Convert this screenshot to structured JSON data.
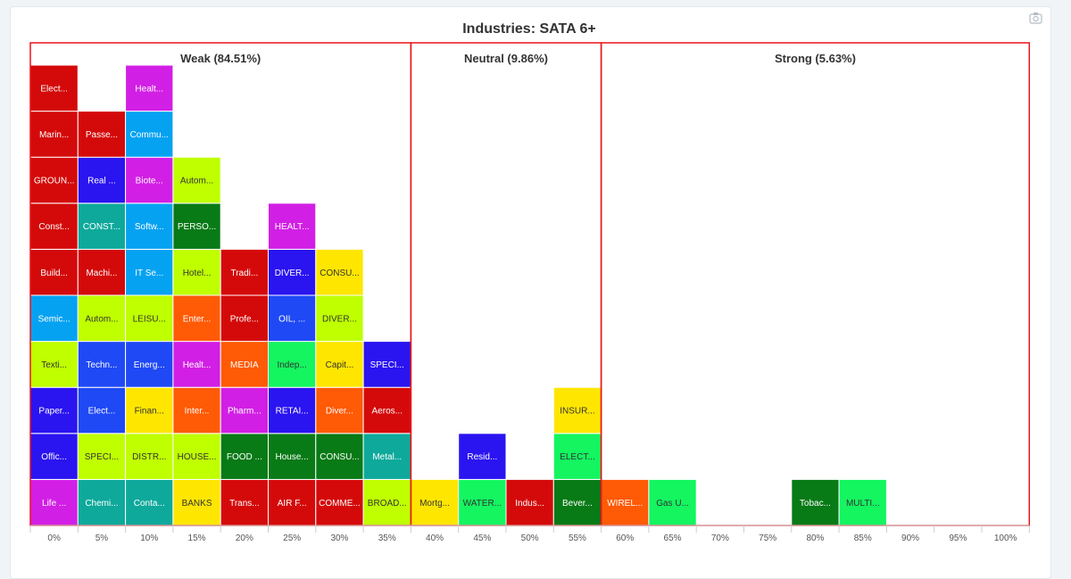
{
  "chart_data": {
    "type": "heatmap",
    "title": "Industries: SATA 6+",
    "x_ticks": [
      "0%",
      "5%",
      "10%",
      "15%",
      "20%",
      "25%",
      "30%",
      "35%",
      "40%",
      "45%",
      "50%",
      "55%",
      "60%",
      "65%",
      "70%",
      "75%",
      "80%",
      "85%",
      "90%",
      "95%",
      "100%"
    ],
    "zones": [
      {
        "label": "Weak (84.51%)",
        "start_col": 0,
        "end_col": 8
      },
      {
        "label": "Neutral (9.86%)",
        "start_col": 8,
        "end_col": 12
      },
      {
        "label": "Strong (5.63%)",
        "start_col": 12,
        "end_col": 21
      }
    ],
    "colors": {
      "red": "#d40a0a",
      "darkred": "#c70606",
      "blue": "#2a14f0",
      "magenta": "#d21fe5",
      "lightblue": "#05a2f2",
      "teal": "#0ea99b",
      "lime": "#bfff00",
      "yellow": "#ffe600",
      "orange": "#ff5a05",
      "darkgreen": "#087a16",
      "green": "#14f560",
      "royal": "#1f49f5",
      "zone_border": "#e8141b"
    },
    "columns": [
      [
        {
          "label": "Life ...",
          "color": "magenta"
        },
        {
          "label": "Offic...",
          "color": "blue"
        },
        {
          "label": "Paper...",
          "color": "blue"
        },
        {
          "label": "Texti...",
          "color": "lime"
        },
        {
          "label": "Semic...",
          "color": "lightblue"
        },
        {
          "label": "Build...",
          "color": "red"
        },
        {
          "label": "Const...",
          "color": "red"
        },
        {
          "label": "GROUN...",
          "color": "red"
        },
        {
          "label": "Marin...",
          "color": "red"
        },
        {
          "label": "Elect...",
          "color": "red"
        }
      ],
      [
        {
          "label": "Chemi...",
          "color": "teal"
        },
        {
          "label": "SPECI...",
          "color": "lime"
        },
        {
          "label": "Elect...",
          "color": "royal"
        },
        {
          "label": "Techn...",
          "color": "royal"
        },
        {
          "label": "Autom...",
          "color": "lime"
        },
        {
          "label": "Machi...",
          "color": "red"
        },
        {
          "label": "CONST...",
          "color": "teal"
        },
        {
          "label": "Real ...",
          "color": "blue"
        },
        {
          "label": "Passe...",
          "color": "red"
        }
      ],
      [
        {
          "label": "Conta...",
          "color": "teal"
        },
        {
          "label": "DISTR...",
          "color": "lime"
        },
        {
          "label": "Finan...",
          "color": "yellow"
        },
        {
          "label": "Energ...",
          "color": "royal"
        },
        {
          "label": "LEISU...",
          "color": "lime"
        },
        {
          "label": "IT Se...",
          "color": "lightblue"
        },
        {
          "label": "Softw...",
          "color": "lightblue"
        },
        {
          "label": "Biote...",
          "color": "magenta"
        },
        {
          "label": "Commu...",
          "color": "lightblue"
        },
        {
          "label": "Healt...",
          "color": "magenta"
        }
      ],
      [
        {
          "label": "BANKS",
          "color": "yellow"
        },
        {
          "label": "HOUSE...",
          "color": "lime"
        },
        {
          "label": "Inter...",
          "color": "orange"
        },
        {
          "label": "Healt...",
          "color": "magenta"
        },
        {
          "label": "Enter...",
          "color": "orange"
        },
        {
          "label": "Hotel...",
          "color": "lime"
        },
        {
          "label": "PERSO...",
          "color": "darkgreen"
        },
        {
          "label": "Autom...",
          "color": "lime"
        }
      ],
      [
        {
          "label": "Trans...",
          "color": "red"
        },
        {
          "label": "FOOD ...",
          "color": "darkgreen"
        },
        {
          "label": "Pharm...",
          "color": "magenta"
        },
        {
          "label": "MEDIA",
          "color": "orange"
        },
        {
          "label": "Profe...",
          "color": "red"
        },
        {
          "label": "Tradi...",
          "color": "red"
        }
      ],
      [
        {
          "label": "AIR F...",
          "color": "red"
        },
        {
          "label": "House...",
          "color": "darkgreen"
        },
        {
          "label": "RETAI...",
          "color": "blue"
        },
        {
          "label": "Indep...",
          "color": "green"
        },
        {
          "label": "OIL, ...",
          "color": "royal"
        },
        {
          "label": "DIVER...",
          "color": "blue"
        },
        {
          "label": "HEALT...",
          "color": "magenta"
        }
      ],
      [
        {
          "label": "COMME...",
          "color": "red"
        },
        {
          "label": "CONSU...",
          "color": "darkgreen"
        },
        {
          "label": "Diver...",
          "color": "orange"
        },
        {
          "label": "Capit...",
          "color": "yellow"
        },
        {
          "label": "DIVER...",
          "color": "lime"
        },
        {
          "label": "CONSU...",
          "color": "yellow"
        }
      ],
      [
        {
          "label": "BROAD...",
          "color": "lime"
        },
        {
          "label": "Metal...",
          "color": "teal"
        },
        {
          "label": "Aeros...",
          "color": "red"
        },
        {
          "label": "SPECI...",
          "color": "blue"
        }
      ],
      [
        {
          "label": "Mortg...",
          "color": "yellow"
        }
      ],
      [
        {
          "label": "WATER...",
          "color": "green"
        },
        {
          "label": "Resid...",
          "color": "blue"
        }
      ],
      [
        {
          "label": "Indus...",
          "color": "red"
        }
      ],
      [
        {
          "label": "Bever...",
          "color": "darkgreen"
        },
        {
          "label": "ELECT...",
          "color": "green"
        },
        {
          "label": "INSUR...",
          "color": "yellow"
        }
      ],
      [
        {
          "label": "WIREL...",
          "color": "orange"
        }
      ],
      [
        {
          "label": "Gas U...",
          "color": "green"
        }
      ],
      [],
      [],
      [
        {
          "label": "Tobac...",
          "color": "darkgreen"
        }
      ],
      [
        {
          "label": "MULTI...",
          "color": "green"
        }
      ],
      [],
      [],
      []
    ]
  },
  "toolbar": {
    "camera_icon": "camera-icon"
  }
}
